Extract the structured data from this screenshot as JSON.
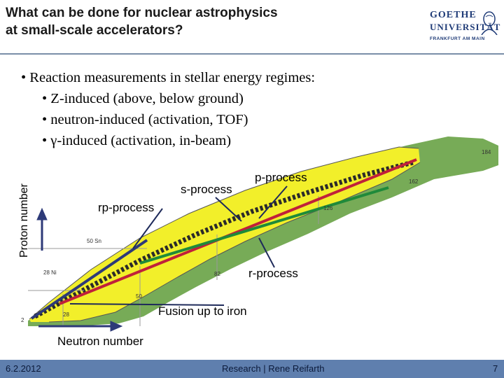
{
  "slide": {
    "title_line1": "What can be done for nuclear astrophysics",
    "title_line2": "at small-scale accelerators?",
    "logo": {
      "line1": "GOETHE",
      "line2": "UNIVERSITÄT",
      "line3": "FRANKFURT AM MAIN"
    },
    "bullets": [
      "• Reaction measurements in stellar energy regimes:",
      "• Z-induced (above, below ground)",
      "• neutron-induced (activation, TOF)",
      "• γ-induced (activation, in-beam)"
    ],
    "diagram": {
      "y_axis_label": "Proton number",
      "x_axis_label": "Neutron number",
      "labels": {
        "p_process": "p-process",
        "s_process": "s-process",
        "rp_process": "rp-process",
        "r_process": "r-process",
        "fusion": "Fusion up to iron"
      },
      "chart_marks": {
        "ni": "28 Ni",
        "sn": "50 Sn",
        "z82": "82",
        "n50": "50",
        "n28": "28",
        "n126": "126",
        "n162": "162",
        "n184": "184",
        "z2": "2"
      },
      "colors": {
        "stable": "#2a2a2a",
        "known": "#f2ef2a",
        "unknown": "#77ab57",
        "s_path": "#c0203a",
        "r_path": "#1f8a3a",
        "rp_path": "#2d3a78"
      }
    },
    "footer": {
      "date": "6.2.2012",
      "center": "Research | Rene Reifarth",
      "page": "7"
    }
  }
}
